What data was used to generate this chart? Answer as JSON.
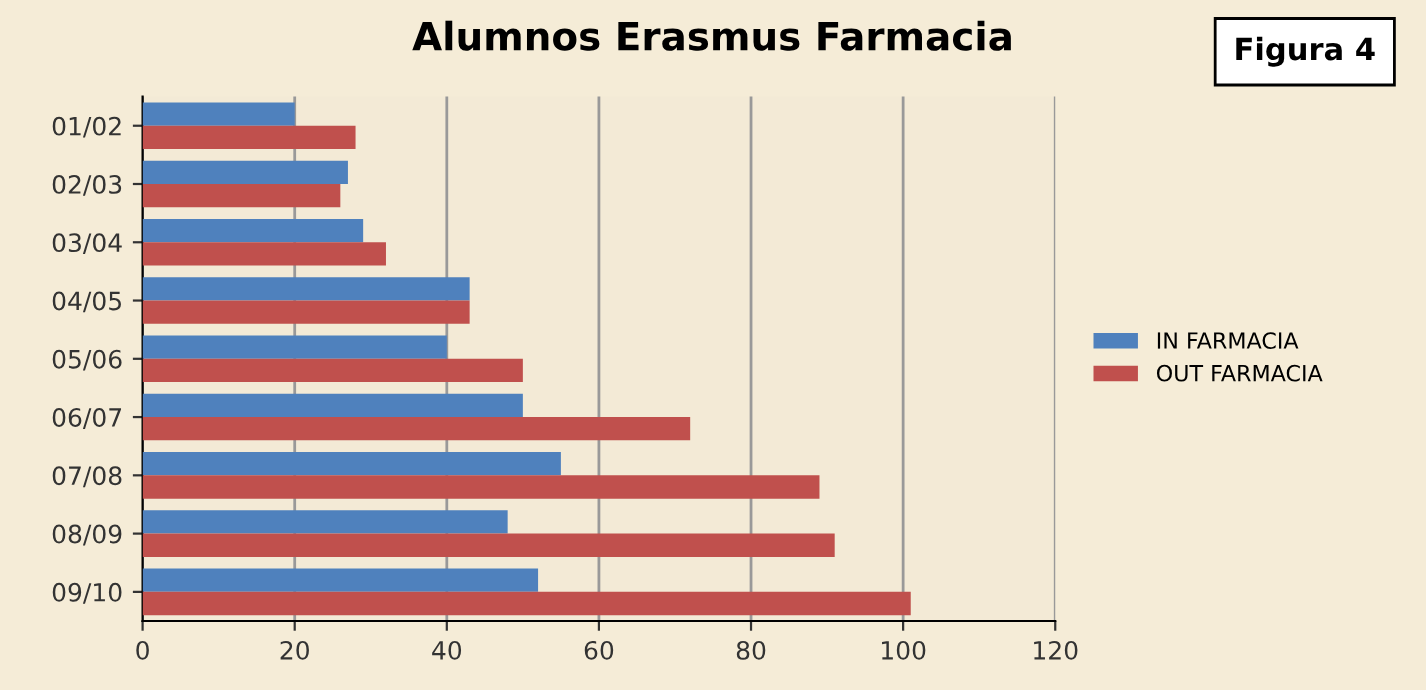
{
  "chart_data": {
    "type": "bar",
    "orientation": "horizontal",
    "title": "Alumnos Erasmus Farmacia",
    "annotations": [
      "Figura 4"
    ],
    "categories": [
      "01/02",
      "02/03",
      "03/04",
      "04/05",
      "05/06",
      "06/07",
      "07/08",
      "08/09",
      "09/10"
    ],
    "series": [
      {
        "name": "IN FARMACIA",
        "color": "#4f81bd",
        "values": [
          20,
          27,
          29,
          43,
          40,
          50,
          55,
          48,
          52
        ]
      },
      {
        "name": "OUT FARMACIA",
        "color": "#c0504d",
        "values": [
          28,
          26,
          32,
          43,
          50,
          72,
          89,
          91,
          101
        ]
      }
    ],
    "xlim": [
      0,
      120
    ],
    "xticks": [
      0,
      20,
      40,
      60,
      80,
      100,
      120
    ],
    "grid": "x",
    "legend": "right"
  }
}
